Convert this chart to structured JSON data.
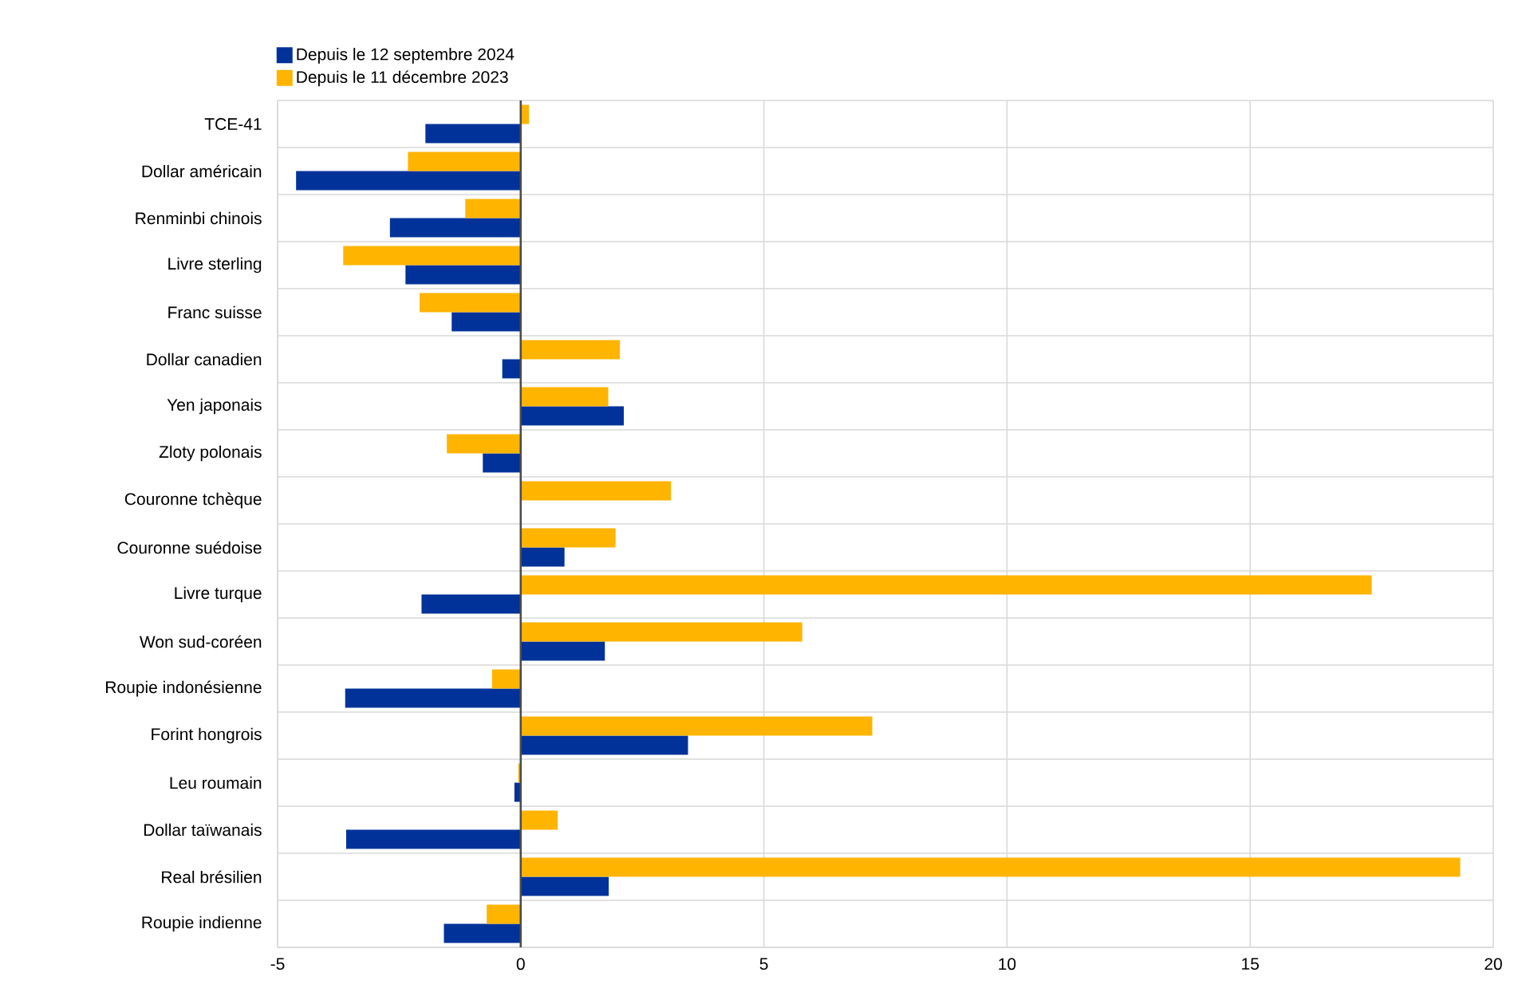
{
  "chart_data": {
    "type": "bar",
    "orientation": "horizontal",
    "categories": [
      "TCE-41",
      "Dollar américain",
      "Renminbi chinois",
      "Livre sterling",
      "Franc suisse",
      "Dollar canadien",
      "Yen japonais",
      "Zloty polonais",
      "Couronne tchèque",
      "Couronne suédoise",
      "Livre turque",
      "Won sud-coréen",
      "Roupie indonésienne",
      "Forint hongrois",
      "Leu roumain",
      "Dollar taïwanais",
      "Real brésilien",
      "Roupie indienne"
    ],
    "series": [
      {
        "name": "Depuis le 12 septembre 2024",
        "color": "#003299",
        "values": [
          -1.96,
          -4.62,
          -2.69,
          -2.37,
          -1.42,
          -0.38,
          2.12,
          -0.78,
          0,
          0.9,
          -2.04,
          1.73,
          -3.61,
          3.44,
          -0.13,
          -3.59,
          1.81,
          -1.58
        ]
      },
      {
        "name": "Depuis le 11 décembre 2023",
        "color": "#ffb400",
        "values": [
          0.17,
          -2.32,
          -1.14,
          -3.65,
          -2.08,
          2.04,
          1.8,
          -1.52,
          3.09,
          1.95,
          17.5,
          5.79,
          -0.59,
          7.23,
          -0.05,
          0.76,
          19.32,
          -0.7
        ]
      }
    ],
    "xlim": [
      -5,
      20
    ],
    "xticks": [
      -5,
      0,
      5,
      10,
      15,
      20
    ],
    "grid": true,
    "legend": "top left"
  }
}
